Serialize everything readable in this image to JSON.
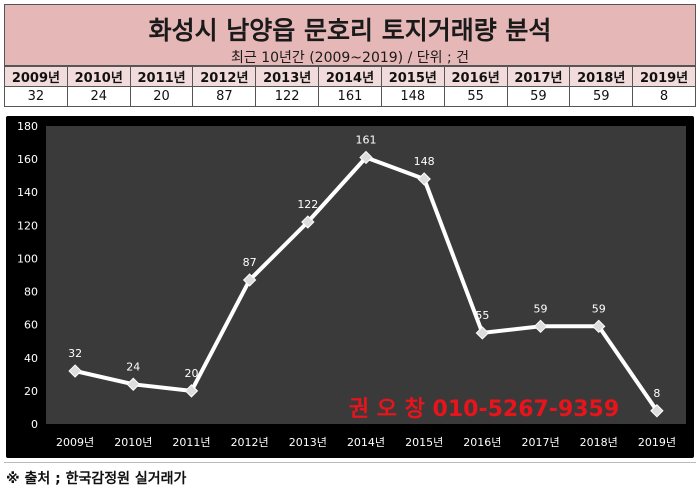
{
  "header": {
    "title": "화성시 남양읍 문호리 토지거래량 분석",
    "subtitle": "최근 10년간 (2009~2019) / 단위 ; 건"
  },
  "table": {
    "years": [
      "2009년",
      "2010년",
      "2011년",
      "2012년",
      "2013년",
      "2014년",
      "2015년",
      "2016년",
      "2017년",
      "2018년",
      "2019년"
    ],
    "values": [
      "32",
      "24",
      "20",
      "87",
      "122",
      "161",
      "148",
      "55",
      "59",
      "59",
      "8"
    ]
  },
  "chart_data": {
    "type": "line",
    "categories": [
      "2009년",
      "2010년",
      "2011년",
      "2012년",
      "2013년",
      "2014년",
      "2015년",
      "2016년",
      "2017년",
      "2018년",
      "2019년"
    ],
    "series": [
      {
        "values": [
          32,
          24,
          20,
          87,
          122,
          161,
          148,
          55,
          59,
          59,
          8
        ]
      }
    ],
    "ylim": [
      0,
      180
    ],
    "yticks": [
      0,
      20,
      40,
      60,
      80,
      100,
      120,
      140,
      160,
      180
    ],
    "grid": false,
    "plot_background": "#3a3a3a",
    "line_color": "#ffffff",
    "tick_color": "#ffffff",
    "watermark_text": "권 오 창 010-5267-9359",
    "watermark_color": "#e8141b"
  },
  "footer": {
    "source": "※ 출처 ; 한국감정원 실거래가"
  }
}
